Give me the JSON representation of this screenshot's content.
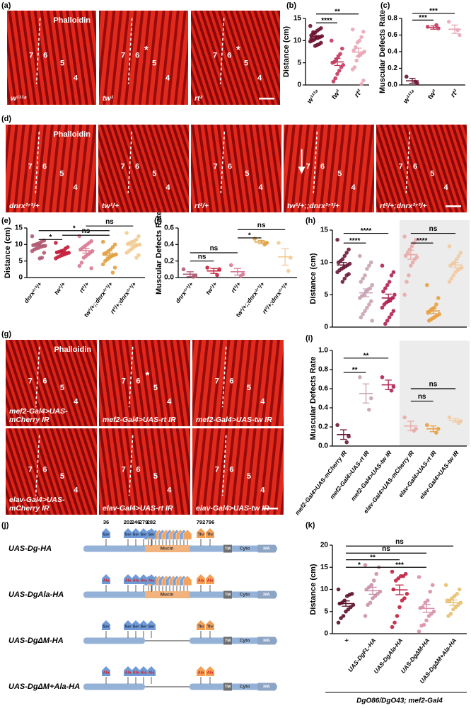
{
  "chart_data": [
    {
      "type": "dot",
      "label": "(b)",
      "ylabel": "Distance (cm)",
      "categories": [
        "w¹¹¹⁸",
        "tw¹",
        "rt²"
      ],
      "colors": [
        "#6b1230",
        "#c4385e",
        "#e9a6b6"
      ],
      "points": [
        [
          13.3,
          12.8,
          12.5,
          12.2,
          11.8,
          11.5,
          11.2,
          11,
          10.8,
          10.6,
          10.5,
          10.2,
          10,
          9.8,
          9.5,
          9.2,
          9,
          8.8,
          11.9,
          10.4
        ],
        [
          10,
          8.2,
          7,
          6.5,
          5.8,
          5.2,
          5,
          4.5,
          4,
          3.2,
          2.5,
          1.5,
          0.8
        ],
        [
          12.5,
          12,
          10.8,
          10,
          9.6,
          8.5,
          7.8,
          7.5,
          7.2,
          6.8,
          6.5,
          5.5,
          4,
          3.5,
          1,
          0.2
        ]
      ],
      "means": [
        10.9,
        5.2,
        7.4
      ],
      "sems": [
        0.3,
        0.8,
        0.9
      ],
      "ylim": [
        0,
        15
      ],
      "yticks": [
        0,
        5,
        10,
        15
      ],
      "significance": [
        "****",
        "**"
      ]
    },
    {
      "type": "dot",
      "label": "(c)",
      "ylabel": "Muscular Defects Rate",
      "categories": [
        "w¹¹¹⁸",
        "tw¹",
        "rt²"
      ],
      "colors": [
        "#6b1230",
        "#c4385e",
        "#e9a6b6"
      ],
      "points": [
        [
          0.1,
          0.02,
          0.04
        ],
        [
          0.7,
          0.68,
          0.72
        ],
        [
          0.76,
          0.6,
          0.66
        ]
      ],
      "means": [
        0.05,
        0.69,
        0.67
      ],
      "sems": [
        0.03,
        0.02,
        0.05
      ],
      "ylim": [
        0,
        0.8
      ],
      "yticks": [
        {
          "value": 0,
          "label": "0.0"
        },
        {
          "value": 0.2,
          "label": "0.2"
        },
        {
          "value": 0.4,
          "label": "0.4"
        },
        {
          "value": 0.6,
          "label": "0.6"
        },
        {
          "value": 0.8,
          "label": "0.8"
        }
      ],
      "significance": [
        "***",
        "***"
      ]
    },
    {
      "type": "dot",
      "label": "(e)",
      "ylabel": "Distance (cm)",
      "categories": [
        "dnrx²⁷³/+",
        "tw¹/+",
        "rt²/+",
        "tw¹/+;;dnrx²⁷³/+",
        "rt²/+;dnrx²⁷³/+"
      ],
      "colors": [
        "#b05a72",
        "#c41e3a",
        "#d97a94",
        "#e0a040",
        "#f2cc94"
      ],
      "points": [
        [
          12.5,
          11.2,
          11,
          10.5,
          10.2,
          10,
          9.8,
          9.6,
          9.5,
          9.3,
          9,
          8.8,
          8.5,
          8,
          7.5,
          6,
          5.8
        ],
        [
          10.5,
          9.2,
          8.8,
          8.2,
          8,
          7.8,
          7.6,
          7.5,
          7.3,
          7,
          6.8,
          6.5,
          6.2,
          5.8
        ],
        [
          12.5,
          11,
          10.5,
          10,
          9.5,
          9,
          8.5,
          8,
          7.5,
          7,
          6.5,
          6,
          4.5,
          3.5,
          2.8
        ],
        [
          10.8,
          10,
          9.2,
          8.5,
          8,
          7.5,
          7.2,
          7,
          6.8,
          6.5,
          6,
          5.5,
          5,
          4,
          3,
          1.5
        ],
        [
          13.5,
          12.5,
          11.5,
          11,
          10.8,
          10.5,
          10.2,
          10,
          9.8,
          9.5,
          9,
          8.5,
          8,
          7.5,
          6.8,
          6
        ]
      ],
      "means": [
        9.8,
        7.7,
        8.1,
        6.8,
        9.9
      ],
      "sems": [
        0.45,
        0.35,
        0.7,
        0.6,
        0.5
      ],
      "ylim": [
        0,
        15
      ],
      "yticks": [
        0,
        5,
        10,
        15
      ],
      "significance": [
        "*",
        "ns",
        "*",
        "ns"
      ]
    },
    {
      "type": "dot",
      "label": "(f)",
      "ylabel": "Muscular Defects Rate",
      "categories": [
        "dnrx²⁷³/+",
        "tw¹/+",
        "rt²/+",
        "tw¹/+;;dnrx²⁷³/+",
        "rt²/+;dnrx²⁷³/+"
      ],
      "colors": [
        "#b05a72",
        "#c41e3a",
        "#d97a94",
        "#e0a040",
        "#f2cc94"
      ],
      "points": [
        [
          0.1,
          0.02,
          0.01
        ],
        [
          0.12,
          0.1,
          0.03
        ],
        [
          0.15,
          0.04,
          0.02
        ],
        [
          0.47,
          0.42,
          0.4
        ],
        [
          0.42,
          0.24,
          0.08
        ]
      ],
      "means": [
        0.04,
        0.08,
        0.07,
        0.43,
        0.25
      ],
      "sems": [
        0.03,
        0.03,
        0.04,
        0.02,
        0.1
      ],
      "ylim": [
        0,
        0.6
      ],
      "yticks": [
        {
          "value": 0,
          "label": "0.0"
        },
        {
          "value": 0.2,
          "label": "0.2"
        },
        {
          "value": 0.4,
          "label": "0.4"
        },
        {
          "value": 0.6,
          "label": "0.6"
        }
      ],
      "significance": [
        "ns",
        "ns",
        "*",
        "ns"
      ]
    },
    {
      "type": "dot",
      "label": "(h)",
      "ylabel": "Distance (cm)",
      "colors": [
        "#6a1a3a",
        "#c9a2b2",
        "#b02050",
        "#e9aaaa",
        "#e8a040",
        "#f2caa2"
      ],
      "points": [
        [
          13.5,
          12,
          11.5,
          11,
          10.5,
          10.2,
          10,
          9.8,
          9.6,
          9.4,
          9.2,
          9,
          8.8,
          8.5,
          8.2,
          8,
          7.5,
          7
        ],
        [
          11,
          10,
          9.5,
          9,
          8,
          7.5,
          7,
          6.5,
          6,
          5.8,
          5.5,
          5,
          4.8,
          4.5,
          4,
          3.5,
          3,
          2.5,
          2,
          1.5,
          1
        ],
        [
          9.5,
          8.5,
          8,
          7,
          6.5,
          6,
          5.5,
          5,
          4.5,
          4.2,
          4,
          3.8,
          3.5,
          3,
          2.5,
          2,
          1.5,
          1,
          0.5
        ],
        [
          14,
          13.5,
          13,
          12.5,
          12,
          11.5,
          11,
          10.8,
          10.5,
          10,
          9.5,
          8,
          7,
          5
        ],
        [
          6.5,
          4.5,
          3.5,
          3,
          2.8,
          2.5,
          2.2,
          2,
          1.8,
          1.6,
          1.4,
          1.2,
          1
        ],
        [
          12.5,
          11.5,
          11,
          10.5,
          10,
          9.8,
          9.5,
          9.2,
          9,
          8.8,
          8.5,
          8,
          7.5,
          7
        ]
      ],
      "means": [
        9.6,
        5.3,
        4.5,
        11.2,
        2.5,
        9.6
      ],
      "sems": [
        0.4,
        0.6,
        0.6,
        0.7,
        0.4,
        0.4
      ],
      "ylim": [
        0,
        15
      ],
      "yticks": [
        0,
        5,
        10,
        15
      ],
      "significance": [
        "****",
        "****",
        "****",
        "ns"
      ]
    },
    {
      "type": "dot",
      "label": "(i)",
      "ylabel": "Muscular Defects Rate",
      "categories": [
        "mef2-Gal4>UAS-mCherry IR",
        "mef2-Gal4>UAS-rt IR",
        "mef2-Gal4>UAS-tw IR",
        "elav-Gal4>UAS-mCherry IR",
        "elav-Gal4>UAS-rt IR",
        "elav-Gal4>UAS-tw IR"
      ],
      "colors": [
        "#6a1a3a",
        "#c9a2b2",
        "#b02050",
        "#e9aaaa",
        "#e8a040",
        "#f2caa2"
      ],
      "points": [
        [
          0.22,
          0.1,
          0.04
        ],
        [
          0.72,
          0.5,
          0.38
        ],
        [
          0.72,
          0.62,
          0.58
        ],
        [
          0.3,
          0.18,
          0.16
        ],
        [
          0.22,
          0.18,
          0.14
        ],
        [
          0.3,
          0.26,
          0.24
        ]
      ],
      "means": [
        0.12,
        0.55,
        0.64,
        0.21,
        0.18,
        0.27
      ],
      "sems": [
        0.05,
        0.1,
        0.05,
        0.05,
        0.03,
        0.02
      ],
      "ylim": [
        0,
        1
      ],
      "yticks": [
        {
          "value": 0,
          "label": "0.0"
        },
        {
          "value": 0.2,
          "label": "0.2"
        },
        {
          "value": 0.4,
          "label": "0.4"
        },
        {
          "value": 0.6,
          "label": "0.6"
        },
        {
          "value": 0.8,
          "label": "0.8"
        },
        {
          "value": 1,
          "label": "1.0"
        }
      ],
      "significance": [
        "**",
        "**",
        "ns",
        "ns"
      ]
    },
    {
      "type": "dot",
      "label": "(k)",
      "ylabel": "Distance (cm)",
      "xlabel": "DgO86/DgO43; mef2-Gal4",
      "categories": [
        "×",
        "UAS-DgFL-HA",
        "UAS-DgAla-HA",
        "UAS-DgΔM-HA",
        "UAS-DgΔM+Ala-HA"
      ],
      "colors": [
        "#5a1028",
        "#c990a8",
        "#c02040",
        "#d990a8",
        "#e8c070"
      ],
      "points": [
        [
          10,
          9,
          8.8,
          8.5,
          7.5,
          7,
          6.8,
          6.5,
          6,
          5.5,
          5,
          4,
          3.5,
          2.5
        ],
        [
          15.5,
          15,
          13.5,
          12,
          11,
          10.5,
          10,
          9.5,
          9,
          8.5,
          8,
          7,
          6.5,
          4
        ],
        [
          14,
          13.5,
          13,
          13,
          12.5,
          12,
          10,
          9,
          8,
          7.5,
          6,
          4,
          2.5,
          1.5
        ],
        [
          12.8,
          11,
          9.5,
          7.5,
          7,
          6,
          5.8,
          5,
          4.5,
          4,
          3,
          2,
          1.8,
          0.5
        ],
        [
          11,
          10,
          9,
          8.5,
          8,
          7.5,
          7.5,
          7,
          6.5,
          6,
          5.5,
          4.5,
          4
        ]
      ],
      "means": [
        6.8,
        9.7,
        9.9,
        5.7,
        7.0
      ],
      "sems": [
        0.6,
        0.8,
        1.1,
        0.9,
        0.6
      ],
      "ylim": [
        0,
        20
      ],
      "yticks": [
        0,
        5,
        10,
        15,
        20
      ],
      "significance": [
        "*",
        "***",
        "**",
        "ns",
        "ns"
      ]
    }
  ],
  "panels": {
    "a": {
      "label": "(a)",
      "stain": "Phalloidin",
      "images": [
        {
          "genotype": [
            "w¹¹¹⁸"
          ],
          "muscles": [
            "7",
            "6",
            "5",
            "4"
          ]
        },
        {
          "genotype": [
            "tw¹"
          ],
          "muscles": [
            "7",
            "6",
            "5",
            "4"
          ],
          "marker": "*"
        },
        {
          "genotype": [
            "rt²"
          ],
          "muscles": [
            "7",
            "6",
            "5",
            "4"
          ],
          "marker": "*"
        }
      ]
    },
    "d": {
      "label": "(d)",
      "stain": "Phalloidin",
      "images": [
        {
          "genotype": [
            "dnrx²⁷³/+"
          ],
          "muscles": [
            "7",
            "6",
            "5",
            "4"
          ]
        },
        {
          "genotype": [
            "tw¹/+"
          ],
          "muscles": [
            "7",
            "6",
            "5",
            "4"
          ]
        },
        {
          "genotype": [
            "rt²/+"
          ],
          "muscles": [
            "7",
            "6",
            "5",
            "4"
          ]
        },
        {
          "genotype": [
            "tw¹/+;;dnrx²⁷³/+"
          ],
          "muscles": [
            "7",
            "6",
            "5",
            "4"
          ]
        },
        {
          "genotype": [
            "rt²/+;dnrx²⁷³/+"
          ],
          "muscles": [
            "7",
            "6",
            "5",
            "4"
          ]
        }
      ]
    },
    "g": {
      "label": "(g)",
      "stain": "Phalloidin",
      "images": [
        {
          "genotype": [
            "mef2-Gal4>UAS-",
            "mCherry IR"
          ],
          "muscles": [
            "7",
            "6",
            "5",
            "4"
          ]
        },
        {
          "genotype": [
            "mef2-Gal4>UAS-rt IR"
          ],
          "muscles": [
            "7",
            "6",
            "5",
            "4"
          ],
          "marker": "*"
        },
        {
          "genotype": [
            "mef2-Gal4>UAS-tw IR"
          ],
          "muscles": [
            "7",
            "6",
            "5",
            "4"
          ]
        },
        {
          "genotype": [
            "elav-Gal4>UAS-",
            "mCherry IR"
          ],
          "muscles": [
            "7",
            "6",
            "5",
            "4"
          ]
        },
        {
          "genotype": [
            "elav-Gal4>UAS-rt IR"
          ],
          "muscles": [
            "7",
            "6",
            "5",
            "4"
          ]
        },
        {
          "genotype": [
            "elav-Gal4>UAS-tw IR"
          ],
          "muscles": [
            "7",
            "6",
            "5",
            "4"
          ]
        }
      ]
    },
    "j": {
      "label": "(j)",
      "sites": [
        "36",
        "202",
        "246",
        "279",
        "282",
        "792",
        "796"
      ],
      "tm": "TM",
      "cyto": "Cyto",
      "ha": "HA",
      "constructs": [
        {
          "name": "UAS-Dg-HA",
          "residues": [
            "Ser",
            "Ser",
            "Ser",
            "Ser",
            "Ser",
            "Thr",
            "Thr"
          ],
          "mucin": "Mucin"
        },
        {
          "name": "UAS-DgAla-HA",
          "residues": [
            "Ala",
            "Ala",
            "Ala",
            "Ala",
            "Ala",
            "Ala",
            "Ala"
          ],
          "mucin": "Mucin"
        },
        {
          "name": "UAS-DgΔM-HA",
          "residues": [
            "Ser",
            "Ser",
            "Ser",
            "Ser",
            "Ser",
            "Thr",
            "Thr"
          ]
        },
        {
          "name": "UAS-DgΔM+Ala-HA",
          "residues": [
            "Ala",
            "Ala",
            "Ala",
            "Ala",
            "Ala",
            "Ala",
            "Ala"
          ]
        }
      ]
    }
  }
}
